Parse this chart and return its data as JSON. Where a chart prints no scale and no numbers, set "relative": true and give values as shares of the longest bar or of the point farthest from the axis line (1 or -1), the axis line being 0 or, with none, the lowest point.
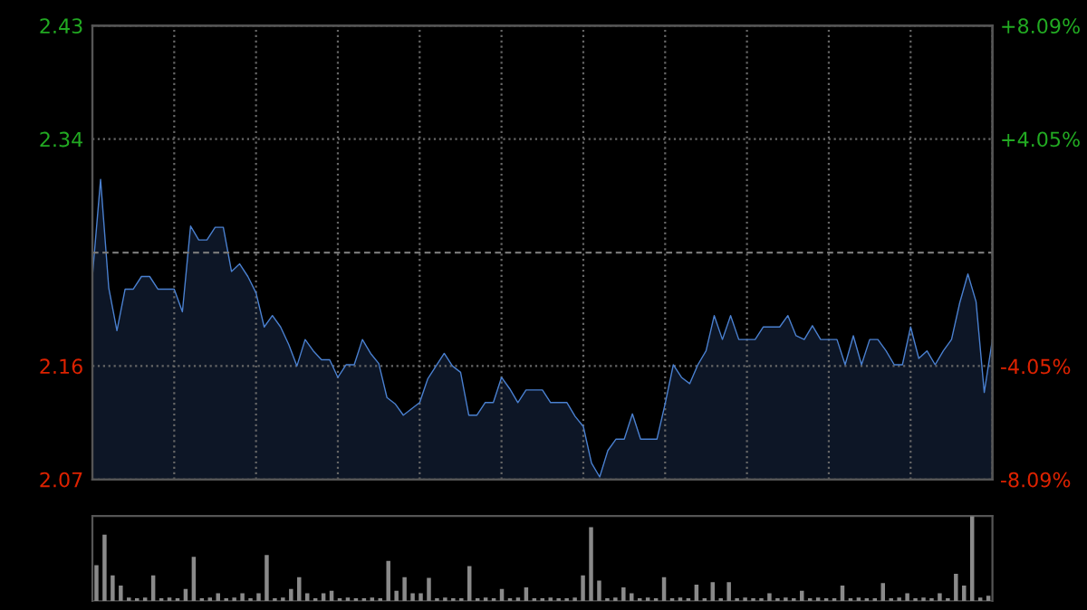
{
  "chart_data": [
    {
      "type": "area",
      "categories": [
        null,
        null,
        null,
        null,
        null,
        null,
        null,
        null,
        null,
        null,
        null,
        null,
        null,
        null,
        null,
        null,
        null,
        null,
        null,
        null,
        null,
        null,
        null,
        null,
        null,
        null,
        null,
        null,
        null,
        null,
        null,
        null,
        null,
        null,
        null,
        null,
        null,
        null,
        null,
        null,
        null,
        null,
        null,
        null,
        null,
        null,
        null,
        null,
        null,
        null,
        null,
        null,
        null,
        null,
        null,
        null,
        null,
        null,
        null,
        null,
        null,
        null,
        null,
        null,
        null,
        null,
        null,
        null,
        null,
        null,
        null,
        null,
        null,
        null,
        null,
        null,
        null,
        null,
        null,
        null,
        null,
        null,
        null,
        null,
        null,
        null,
        null,
        null,
        null,
        null,
        null,
        null,
        null,
        null,
        null,
        null,
        null,
        null,
        null,
        null,
        null,
        null,
        null,
        null,
        null,
        null,
        null,
        null,
        null,
        null,
        null
      ],
      "series": [
        {
          "color": "#4a80d0",
          "values": [
            2.231,
            2.308,
            2.222,
            2.188,
            2.221,
            2.221,
            2.231,
            2.231,
            2.221,
            2.221,
            2.221,
            2.203,
            2.271,
            2.26,
            2.26,
            2.27,
            2.27,
            2.235,
            2.241,
            2.231,
            2.218,
            2.191,
            2.2,
            2.191,
            2.177,
            2.16,
            2.181,
            2.172,
            2.165,
            2.165,
            2.151,
            2.161,
            2.161,
            2.181,
            2.17,
            2.162,
            2.135,
            2.13,
            2.121,
            2.126,
            2.131,
            2.15,
            2.16,
            2.17,
            2.16,
            2.155,
            2.121,
            2.121,
            2.131,
            2.131,
            2.151,
            2.142,
            2.131,
            2.141,
            2.141,
            2.141,
            2.131,
            2.131,
            2.131,
            2.12,
            2.112,
            2.083,
            2.072,
            2.093,
            2.102,
            2.102,
            2.122,
            2.102,
            2.102,
            2.102,
            2.13,
            2.161,
            2.151,
            2.146,
            2.161,
            2.172,
            2.2,
            2.181,
            2.2,
            2.181,
            2.181,
            2.181,
            2.191,
            2.191,
            2.191,
            2.2,
            2.184,
            2.181,
            2.192,
            2.181,
            2.181,
            2.181,
            2.161,
            2.184,
            2.161,
            2.181,
            2.181,
            2.172,
            2.161,
            2.161,
            2.191,
            2.166,
            2.172,
            2.161,
            2.172,
            2.181,
            2.21,
            2.233,
            2.211,
            2.139,
            2.181
          ]
        }
      ],
      "ylim": [
        2.07,
        2.43
      ],
      "yticks": [
        2.07,
        2.16,
        2.34,
        2.43
      ],
      "y2lim": [
        -8.09,
        8.09
      ],
      "y2ticks": [
        {
          "value": -8.09,
          "label": "-8.09%"
        },
        {
          "value": -4.05,
          "label": "-4.05%"
        },
        {
          "value": 4.05,
          "label": "+4.05%"
        },
        {
          "value": 8.09,
          "label": "+8.09%"
        }
      ],
      "ref_lines": [
        {
          "axis": "y",
          "value": 2.25,
          "line_style": "dashed",
          "color": "#777777"
        }
      ],
      "grid": true,
      "tick_labels": "y"
    },
    {
      "type": "bar",
      "relative": true,
      "color": "#8a8a8a",
      "categories": [
        null,
        null,
        null,
        null,
        null,
        null,
        null,
        null,
        null,
        null,
        null,
        null,
        null,
        null,
        null,
        null,
        null,
        null,
        null,
        null,
        null,
        null,
        null,
        null,
        null,
        null,
        null,
        null,
        null,
        null,
        null,
        null,
        null,
        null,
        null,
        null,
        null,
        null,
        null,
        null,
        null,
        null,
        null,
        null,
        null,
        null,
        null,
        null,
        null,
        null,
        null,
        null,
        null,
        null,
        null,
        null,
        null,
        null,
        null,
        null,
        null,
        null,
        null,
        null,
        null,
        null,
        null,
        null,
        null,
        null,
        null,
        null,
        null,
        null,
        null,
        null,
        null,
        null,
        null,
        null,
        null,
        null,
        null,
        null,
        null,
        null,
        null,
        null,
        null,
        null,
        null,
        null,
        null,
        null,
        null,
        null,
        null,
        null,
        null,
        null,
        null,
        null,
        null,
        null,
        null,
        null,
        null,
        null,
        null,
        null,
        null
      ],
      "values": [
        0.42,
        0.78,
        0.3,
        0.18,
        0.04,
        0.03,
        0.04,
        0.3,
        0.03,
        0.04,
        0.03,
        0.14,
        0.52,
        0.03,
        0.04,
        0.09,
        0.03,
        0.04,
        0.09,
        0.03,
        0.09,
        0.54,
        0.03,
        0.04,
        0.14,
        0.28,
        0.09,
        0.03,
        0.09,
        0.12,
        0.03,
        0.04,
        0.03,
        0.03,
        0.04,
        0.03,
        0.47,
        0.12,
        0.28,
        0.09,
        0.09,
        0.27,
        0.03,
        0.04,
        0.03,
        0.03,
        0.41,
        0.03,
        0.04,
        0.03,
        0.14,
        0.03,
        0.04,
        0.16,
        0.03,
        0.03,
        0.04,
        0.03,
        0.03,
        0.04,
        0.3,
        0.87,
        0.24,
        0.03,
        0.04,
        0.16,
        0.09,
        0.03,
        0.04,
        0.03,
        0.28,
        0.03,
        0.04,
        0.03,
        0.19,
        0.03,
        0.22,
        0.03,
        0.22,
        0.03,
        0.04,
        0.03,
        0.03,
        0.09,
        0.03,
        0.04,
        0.03,
        0.12,
        0.03,
        0.04,
        0.03,
        0.03,
        0.18,
        0.03,
        0.04,
        0.03,
        0.03,
        0.21,
        0.03,
        0.04,
        0.09,
        0.03,
        0.04,
        0.03,
        0.09,
        0.03,
        0.32,
        0.18,
        1.0,
        0.04,
        0.06
      ]
    }
  ]
}
